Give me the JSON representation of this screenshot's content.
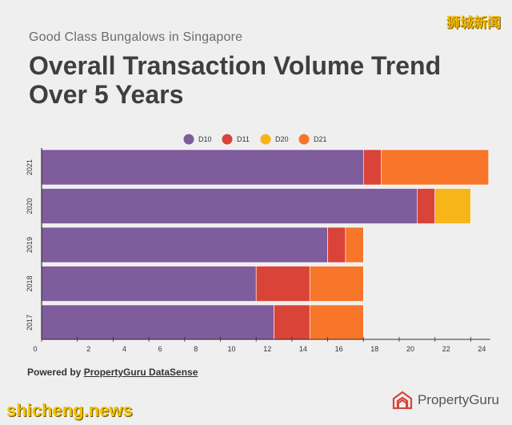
{
  "header": {
    "subtitle": "Good Class Bungalows in Singapore",
    "title": "Overall Transaction Volume Trend Over 5 Years"
  },
  "watermarks": {
    "top": "狮城新闻",
    "bottom": "shicheng.news"
  },
  "footer": {
    "powered_prefix": "Powered by ",
    "powered_link": "PropertyGuru DataSense",
    "brand": "PropertyGuru"
  },
  "colors": {
    "D10": "#7f5c9c",
    "D11": "#d94338",
    "D20": "#f7b519",
    "D21": "#f7762a",
    "axis": "#333333"
  },
  "chart_data": {
    "type": "bar",
    "orientation": "horizontal",
    "stacked": true,
    "categories": [
      "2021",
      "2020",
      "2019",
      "2018",
      "2017"
    ],
    "series": [
      {
        "name": "D10",
        "values": [
          18,
          21,
          16,
          12,
          13
        ]
      },
      {
        "name": "D11",
        "values": [
          1,
          1,
          1,
          3,
          2
        ]
      },
      {
        "name": "D20",
        "values": [
          0,
          2,
          0,
          0,
          0
        ]
      },
      {
        "name": "D21",
        "values": [
          6,
          0,
          1,
          3,
          3
        ]
      }
    ],
    "x_ticks": [
      0,
      2,
      4,
      6,
      8,
      10,
      12,
      14,
      16,
      18,
      20,
      22,
      24
    ],
    "xlim": [
      0,
      25
    ],
    "legend": "top-center",
    "grid": false
  }
}
